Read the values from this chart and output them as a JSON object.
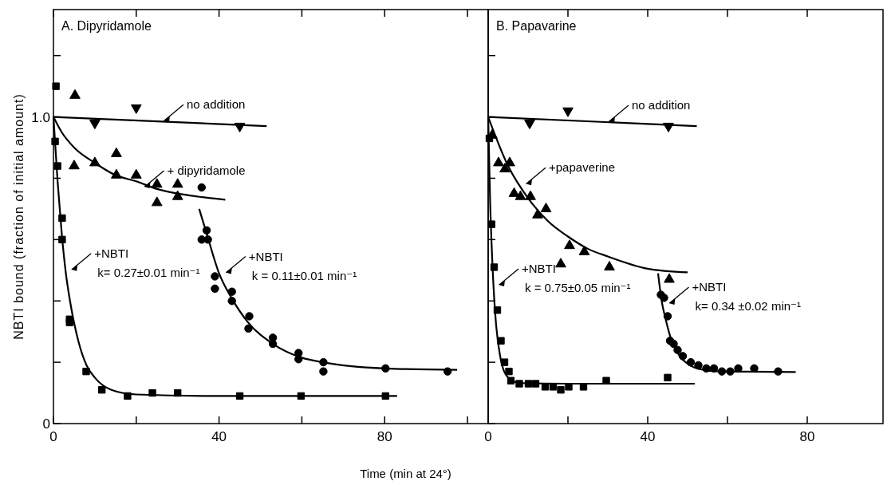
{
  "chart_data": [
    {
      "type": "scatter",
      "title": "A. Dipyridamole",
      "ylabel": "NBTI bound (fraction of initial amount)",
      "xlim": [
        0,
        105
      ],
      "ylim": [
        0,
        1.35
      ],
      "xticks": [
        0,
        {
          "value": 20,
          "label": null
        },
        40,
        {
          "value": 60,
          "label": null
        },
        80,
        {
          "value": 100,
          "label": null
        }
      ],
      "yticks": [
        0,
        {
          "value": 0.2,
          "label": null
        },
        {
          "value": 0.4,
          "label": null
        },
        {
          "value": 0.6,
          "label": null
        },
        {
          "value": 0.8,
          "label": null
        },
        {
          "value": 1.0,
          "label": "1.0"
        },
        {
          "value": 1.2,
          "label": null
        }
      ],
      "grid": false,
      "series": [
        {
          "marker": "triangle-down",
          "color": "#000000",
          "x": [
            10,
            20,
            45
          ],
          "values": [
            0.98,
            1.03,
            0.97
          ]
        },
        {
          "type": "line",
          "marker": "none",
          "color": "#000000",
          "x": [
            0,
            51.5
          ],
          "values": [
            1.0,
            0.97
          ]
        },
        {
          "marker": "triangle",
          "color": "#000000",
          "x": [
            5.2,
            5,
            10,
            15.2,
            15.2,
            20,
            25,
            30,
            25,
            30
          ],
          "values": [
            1.07,
            0.84,
            0.85,
            0.88,
            0.81,
            0.81,
            0.78,
            0.78,
            0.72,
            0.74
          ]
        },
        {
          "type": "line",
          "marker": "none",
          "color": "#000000",
          "x": [
            0,
            2,
            5,
            10,
            15,
            20,
            25,
            30,
            35,
            41.5
          ],
          "values": [
            1.0,
            0.95,
            0.9,
            0.85,
            0.81,
            0.79,
            0.765,
            0.75,
            0.74,
            0.73
          ]
        },
        {
          "marker": "square",
          "color": "#000000",
          "x": [
            0.6,
            0.4,
            1,
            2.1,
            2.1,
            3.9,
            3.9,
            7.9,
            11.7,
            17.9,
            23.9,
            30,
            45,
            59.8,
            80.2
          ],
          "values": [
            1.1,
            0.92,
            0.84,
            0.67,
            0.6,
            0.34,
            0.33,
            0.17,
            0.11,
            0.09,
            0.1,
            0.1,
            0.09,
            0.09,
            0.09
          ]
        },
        {
          "type": "line",
          "marker": "none",
          "color": "#000000",
          "x": [
            0,
            1,
            2,
            3,
            4,
            6,
            8,
            10,
            14,
            20,
            40,
            83
          ],
          "values": [
            1.0,
            0.79,
            0.62,
            0.49,
            0.4,
            0.27,
            0.19,
            0.15,
            0.11,
            0.095,
            0.09,
            0.09
          ]
        },
        {
          "marker": "circle",
          "color": "#000000",
          "x": [
            35.8,
            37,
            35.8,
            37.3,
            39,
            39,
            43.1,
            43.1,
            47.3,
            47.1,
            53,
            53,
            59.2,
            59.2,
            65.2,
            65.2,
            80.2,
            95.2
          ],
          "values": [
            0.77,
            0.63,
            0.6,
            0.6,
            0.48,
            0.44,
            0.43,
            0.4,
            0.35,
            0.31,
            0.28,
            0.26,
            0.23,
            0.21,
            0.2,
            0.17,
            0.18,
            0.17
          ]
        },
        {
          "type": "line",
          "marker": "none",
          "color": "#000000",
          "x": [
            35.2,
            37,
            40,
            43,
            47,
            53,
            60,
            65,
            80,
            97.5
          ],
          "values": [
            0.7,
            0.62,
            0.49,
            0.41,
            0.33,
            0.26,
            0.215,
            0.2,
            0.18,
            0.175
          ]
        }
      ],
      "annotations": [
        {
          "text": "no addition",
          "x": 26,
          "y": 0.985
        },
        {
          "text": "+ dipyridamole",
          "x": 21.3,
          "y": 0.77
        },
        {
          "text": "+NBTI\nk= 0.27±0.01 min⁻¹",
          "x": 3.7,
          "y": 0.5
        },
        {
          "text": "+NBTI\nk = 0.11±0.01 min⁻¹",
          "x": 41,
          "y": 0.49
        }
      ]
    },
    {
      "type": "scatter",
      "title": "B. Papavarine",
      "xlabel": "Time (min at 24°)",
      "xlim": [
        0,
        99
      ],
      "ylim": [
        0,
        1.35
      ],
      "tick_labels": "x",
      "xticks": [
        0,
        {
          "value": 20,
          "label": null
        },
        40,
        {
          "value": 60,
          "label": null
        },
        80
      ],
      "yticks": [
        0,
        {
          "value": 0.2,
          "label": null
        },
        {
          "value": 0.4,
          "label": null
        },
        {
          "value": 0.6,
          "label": null
        },
        {
          "value": 0.8,
          "label": null
        },
        {
          "value": 1.0,
          "label": null
        },
        {
          "value": 1.2,
          "label": null
        }
      ],
      "grid": false,
      "series": [
        {
          "marker": "triangle-down",
          "color": "#000000",
          "x": [
            10.4,
            20,
            45.2
          ],
          "values": [
            0.98,
            1.02,
            0.97
          ]
        },
        {
          "type": "line",
          "marker": "none",
          "color": "#000000",
          "x": [
            0,
            52.3
          ],
          "values": [
            1.0,
            0.97
          ]
        },
        {
          "marker": "triangle",
          "color": "#000000",
          "x": [
            1,
            2.6,
            5.4,
            4.2,
            6.5,
            8.1,
            10.6,
            12.4,
            14.5,
            20.4,
            24.1,
            18.2,
            30.4,
            45.4
          ],
          "values": [
            0.94,
            0.85,
            0.85,
            0.83,
            0.75,
            0.74,
            0.74,
            0.68,
            0.7,
            0.58,
            0.56,
            0.52,
            0.51,
            0.47
          ]
        },
        {
          "type": "line",
          "marker": "none",
          "color": "#000000",
          "x": [
            0,
            5,
            10,
            15,
            20,
            25,
            30,
            40,
            50
          ],
          "values": [
            1.0,
            0.84,
            0.735,
            0.66,
            0.61,
            0.57,
            0.545,
            0.505,
            0.493
          ]
        },
        {
          "marker": "square",
          "color": "#000000",
          "x": [
            0.3,
            0.85,
            1.5,
            2.3,
            3.2,
            4.1,
            5.2,
            5.7,
            7.8,
            10.1,
            11.9,
            14.3,
            16.3,
            18.2,
            20.2,
            23.9,
            29.6,
            45
          ],
          "values": [
            0.93,
            0.65,
            0.51,
            0.37,
            0.27,
            0.2,
            0.17,
            0.14,
            0.13,
            0.13,
            0.13,
            0.12,
            0.12,
            0.11,
            0.12,
            0.12,
            0.14,
            0.15
          ]
        },
        {
          "type": "line",
          "marker": "none",
          "color": "#000000",
          "x": [
            0,
            0.5,
            1,
            1.5,
            2,
            3,
            4,
            6,
            8,
            20,
            51.8
          ],
          "values": [
            1.0,
            0.72,
            0.54,
            0.41,
            0.32,
            0.22,
            0.17,
            0.14,
            0.132,
            0.13,
            0.13
          ]
        },
        {
          "marker": "circle",
          "color": "#000000",
          "x": [
            43.3,
            44.1,
            45,
            45.6,
            46.5,
            47.5,
            48.8,
            50.8,
            52.7,
            54.7,
            56.6,
            58.6,
            60.7,
            62.7,
            66.7,
            72.7
          ],
          "values": [
            0.42,
            0.41,
            0.35,
            0.27,
            0.26,
            0.24,
            0.22,
            0.2,
            0.19,
            0.18,
            0.18,
            0.17,
            0.17,
            0.18,
            0.18,
            0.17
          ]
        },
        {
          "type": "line",
          "marker": "none",
          "color": "#000000",
          "x": [
            42.6,
            43.5,
            44.5,
            46,
            48,
            50,
            53,
            58,
            77.1
          ],
          "values": [
            0.49,
            0.4,
            0.34,
            0.27,
            0.22,
            0.195,
            0.178,
            0.17,
            0.168
          ]
        }
      ],
      "annotations": [
        {
          "text": "no addition",
          "x": 29.6,
          "y": 0.983
        },
        {
          "text": "+papaverine",
          "x": 8.8,
          "y": 0.78
        },
        {
          "text": "+NBTI\nk = 0.75±0.05 min⁻¹",
          "x": 2,
          "y": 0.45
        },
        {
          "text": "+NBTI\nk= 0.34 ±0.02 min⁻¹",
          "x": 44.7,
          "y": 0.39
        }
      ]
    }
  ]
}
